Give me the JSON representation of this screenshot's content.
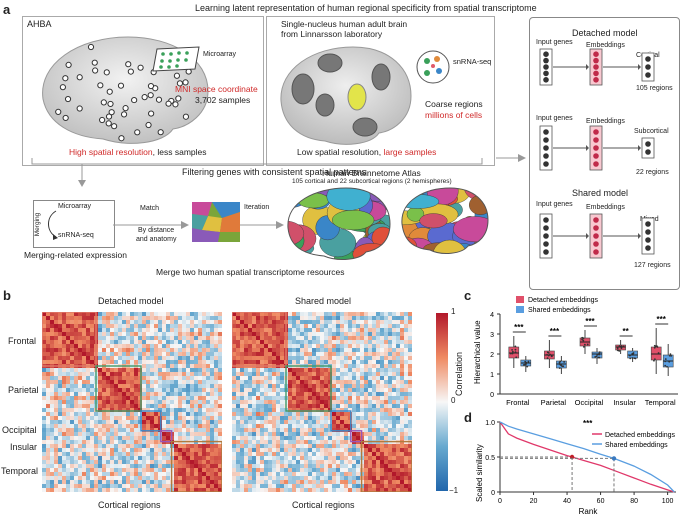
{
  "panel_a": {
    "label": "a",
    "title": "Learning latent representation of human regional specificity from spatial transcriptome",
    "ahba": {
      "name": "AHBA",
      "microarray": "Microarray",
      "mni": "MNI space coordinate",
      "samples": "3,702 samples",
      "resolution_hi": "High spatial resolution",
      "resolution_rest": ", less samples"
    },
    "snrna": {
      "title_line1": "Single-nucleus human adult brain",
      "title_line2": "from Linnarsson laboratory",
      "method": "snRNA-seq",
      "coarse": "Coarse regions",
      "cells": "millions of cells",
      "resolution_low": "Low spatial resolution, ",
      "resolution_large": "large samples"
    },
    "filtering": "Filtering genes with consistent spatial patterns",
    "merging": {
      "microarray": "Microarray",
      "merging": "Merging",
      "snrna": "snRNA-seq",
      "caption": "Merging-related expression"
    },
    "match": {
      "label": "Match",
      "by1": "By distance",
      "by2": "and anatomy"
    },
    "iteration": "Iteration",
    "atlas": {
      "title": "Human Brainnetome Atlas",
      "subtitle": "105 cortical and 22 subcortical regions (2 hemispheres)"
    },
    "merge_caption": "Merge two human spatial transcriptome resources",
    "models": {
      "detached_title": "Detached model",
      "shared_title": "Shared model",
      "input_genes": "Input genes",
      "embeddings": "Embeddings",
      "cortical": "Cortical",
      "cortical_regions": "105 regions",
      "subcortical": "Subcortical",
      "subcortical_regions": "22 regions",
      "mixed": "Mixed",
      "mixed_regions": "127 regions"
    }
  },
  "panel_b": {
    "label": "b",
    "detached_title": "Detached model",
    "shared_title": "Shared model",
    "row_labels": [
      "Frontal",
      "Parietal",
      "Occipital",
      "Insular",
      "Temporal"
    ],
    "row_colors": [
      "#e07a6a",
      "#3f9a6a",
      "#3a86c8",
      "#9a55b8",
      "#b07a3e"
    ],
    "xlabel": "Cortical regions",
    "colorbar_label": "Correlation",
    "colorbar_max": "1",
    "colorbar_zero": "0",
    "colorbar_min": "−1"
  },
  "panel_c": {
    "label": "c",
    "ylabel": "Hierarchical value",
    "legend": [
      "Detached embeddings",
      "Shared embeddings"
    ],
    "colors": {
      "detached": "#e0506a",
      "shared": "#5a9ee0"
    },
    "significance": [
      "***",
      "***",
      "***",
      "**",
      "***"
    ],
    "chart_data": {
      "type": "box",
      "categories": [
        "Frontal",
        "Parietal",
        "Occipital",
        "Insular",
        "Temporal"
      ],
      "ylim": [
        0,
        4
      ],
      "yticks": [
        "0",
        "1",
        "2",
        "3",
        "4"
      ],
      "series": [
        {
          "name": "Detached embeddings",
          "median": [
            2.05,
            1.95,
            2.6,
            2.35,
            2.0
          ],
          "q1": [
            1.8,
            1.75,
            2.4,
            2.2,
            1.7
          ],
          "q3": [
            2.35,
            2.15,
            2.8,
            2.45,
            2.35
          ],
          "min": [
            1.3,
            1.3,
            2.0,
            2.0,
            1.0
          ],
          "max": [
            2.9,
            2.7,
            3.2,
            2.7,
            3.3
          ]
        },
        {
          "name": "Shared embeddings",
          "median": [
            1.55,
            1.5,
            2.0,
            1.95,
            1.65
          ],
          "q1": [
            1.4,
            1.3,
            1.8,
            1.8,
            1.35
          ],
          "q3": [
            1.7,
            1.65,
            2.1,
            2.15,
            1.95
          ],
          "min": [
            1.1,
            1.0,
            1.5,
            1.6,
            0.9
          ],
          "max": [
            1.9,
            1.9,
            2.3,
            2.3,
            2.5
          ]
        }
      ]
    }
  },
  "panel_d": {
    "label": "d",
    "ylabel": "Scaled similarity",
    "xlabel": "Rank",
    "significance": "***",
    "legend": [
      "Detached embeddings",
      "Shared embeddings"
    ],
    "colors": {
      "detached": "#e0386a",
      "shared": "#5a9ee0"
    },
    "chart_data": {
      "type": "line",
      "xlim": [
        0,
        105
      ],
      "ylim": [
        0,
        1
      ],
      "xticks": [
        "0",
        "20",
        "40",
        "60",
        "80",
        "100"
      ],
      "yticks": [
        "0",
        "0.5",
        "1.0"
      ],
      "series": [
        {
          "name": "Detached embeddings",
          "x": [
            0,
            5,
            10,
            20,
            30,
            40,
            43,
            50,
            60,
            70,
            80,
            90,
            100,
            104
          ],
          "y": [
            1.0,
            0.83,
            0.77,
            0.68,
            0.6,
            0.52,
            0.5,
            0.45,
            0.38,
            0.29,
            0.2,
            0.11,
            0.03,
            0.0
          ]
        },
        {
          "name": "Shared embeddings",
          "x": [
            0,
            5,
            10,
            20,
            30,
            40,
            50,
            60,
            68,
            80,
            90,
            100,
            104
          ],
          "y": [
            1.0,
            0.94,
            0.9,
            0.83,
            0.76,
            0.69,
            0.62,
            0.54,
            0.48,
            0.37,
            0.25,
            0.1,
            0.0
          ]
        }
      ],
      "markers": [
        {
          "series": "Detached embeddings",
          "x": 43,
          "y": 0.5
        },
        {
          "series": "Shared embeddings",
          "x": 68,
          "y": 0.48
        }
      ]
    }
  }
}
